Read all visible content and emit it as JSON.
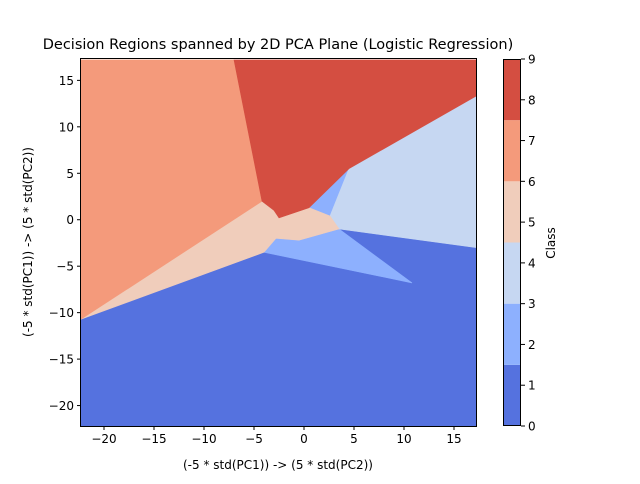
{
  "chart_data": {
    "type": "heatmap",
    "title": "Decision Regions spanned by 2D PCA Plane (Logistic Regression)",
    "xlabel": "(-5 * std(PC1)) -> (5 * std(PC2))",
    "ylabel": "(-5 * std(PC1)) -> (5 * std(PC2))",
    "xlim": [
      -22.3,
      17.2
    ],
    "ylim": [
      -22.2,
      17.3
    ],
    "xticks": [
      -20,
      -15,
      -10,
      -5,
      0,
      5,
      10,
      15
    ],
    "yticks": [
      -20,
      -15,
      -10,
      -5,
      0,
      5,
      10,
      15
    ],
    "colors": {
      "class1": "#5572df",
      "class2": "#8db0fe",
      "class4": "#c6d7f2",
      "class5": "#f0cdbb",
      "class7": "#f49a7b",
      "class8": "#d44e41"
    },
    "regions": [
      {
        "class": 1,
        "color_key": "class1",
        "polygon": [
          [
            -22.3,
            -10.7
          ],
          [
            -4.0,
            -3.5
          ],
          [
            10.8,
            -6.8
          ],
          [
            3.5,
            -1.0
          ],
          [
            17.2,
            -3.0
          ],
          [
            17.2,
            -22.2
          ],
          [
            -22.3,
            -22.2
          ]
        ]
      },
      {
        "class": 2,
        "color_key": "class2",
        "polygon": [
          [
            -4.0,
            -3.5
          ],
          [
            -2.8,
            -2.0
          ],
          [
            -0.5,
            -2.2
          ],
          [
            3.5,
            -1.0
          ],
          [
            10.8,
            -6.8
          ]
        ]
      },
      {
        "class": 2,
        "color_key": "class2",
        "polygon": [
          [
            0.5,
            1.3
          ],
          [
            4.5,
            5.5
          ],
          [
            2.6,
            0.4
          ]
        ]
      },
      {
        "class": 4,
        "color_key": "class4",
        "polygon": [
          [
            17.2,
            13.3
          ],
          [
            4.5,
            5.5
          ],
          [
            2.6,
            0.4
          ],
          [
            3.5,
            -1.0
          ],
          [
            17.2,
            -3.0
          ]
        ]
      },
      {
        "class": 5,
        "color_key": "class5",
        "polygon": [
          [
            -22.3,
            -10.7
          ],
          [
            -4.0,
            -3.5
          ],
          [
            -2.8,
            -2.0
          ],
          [
            -0.5,
            -2.2
          ],
          [
            3.5,
            -1.0
          ],
          [
            2.6,
            0.4
          ],
          [
            0.5,
            1.3
          ],
          [
            -2.5,
            0.2
          ],
          [
            -3.0,
            1.0
          ],
          [
            -4.2,
            2.0
          ],
          [
            -22.3,
            -10.7
          ]
        ]
      },
      {
        "class": 7,
        "color_key": "class7",
        "polygon": [
          [
            -22.3,
            17.2
          ],
          [
            -7.0,
            17.2
          ],
          [
            -4.2,
            2.0
          ],
          [
            -22.3,
            -10.7
          ]
        ]
      },
      {
        "class": 8,
        "color_key": "class8",
        "polygon": [
          [
            -7.0,
            17.2
          ],
          [
            17.2,
            17.2
          ],
          [
            17.2,
            13.3
          ],
          [
            4.5,
            5.5
          ],
          [
            0.5,
            1.3
          ],
          [
            -2.5,
            0.2
          ],
          [
            -3.0,
            1.0
          ],
          [
            -4.2,
            2.0
          ]
        ]
      }
    ],
    "colorbar": {
      "label": "Class",
      "ticks": [
        0,
        1,
        2,
        3,
        4,
        5,
        6,
        7,
        8,
        9
      ],
      "levels": [
        0,
        1.5,
        3,
        4.5,
        6,
        7.5,
        9
      ],
      "bands": [
        {
          "from": 0,
          "to": 1.5,
          "color_key": "class1"
        },
        {
          "from": 1.5,
          "to": 3,
          "color_key": "class2"
        },
        {
          "from": 3,
          "to": 4.5,
          "color_key": "class4"
        },
        {
          "from": 4.5,
          "to": 6,
          "color_key": "class5"
        },
        {
          "from": 6,
          "to": 7.5,
          "color_key": "class7"
        },
        {
          "from": 7.5,
          "to": 9,
          "color_key": "class8"
        }
      ]
    }
  }
}
